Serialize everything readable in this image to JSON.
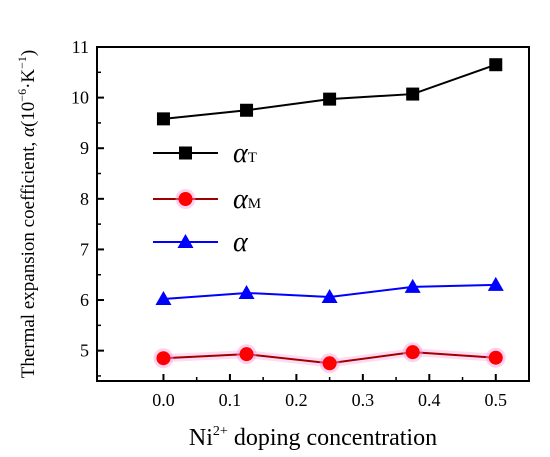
{
  "chart_data": {
    "type": "line",
    "xlabel": {
      "base": "Ni",
      "sup": "2+",
      "rest": " doping concentration"
    },
    "ylabel": {
      "prefix": "Thermal expansion coefficient, ",
      "sym": "α",
      "open": "(10",
      "exp": "−6",
      "mid": "·K",
      "exp2": "−1",
      "close": ")"
    },
    "xlim": [
      -0.1,
      0.55
    ],
    "ylim": [
      4.4,
      11
    ],
    "x_ticks": [
      0.0,
      0.1,
      0.2,
      0.3,
      0.4,
      0.5
    ],
    "x_tick_labels": [
      "0.0",
      "0.1",
      "0.2",
      "0.3",
      "0.4",
      "0.5"
    ],
    "y_ticks": [
      5,
      6,
      7,
      8,
      9,
      10,
      11
    ],
    "y_tick_labels": [
      "5",
      "6",
      "7",
      "8",
      "9",
      "10",
      "11"
    ],
    "x": [
      0.0,
      0.125,
      0.25,
      0.375,
      0.5
    ],
    "series": [
      {
        "name": "αT",
        "sym": "α",
        "sub": "T",
        "color": "#000000",
        "marker": "square",
        "values": [
          9.58,
          9.75,
          9.97,
          10.07,
          10.65
        ]
      },
      {
        "name": "αM",
        "sym": "α",
        "sub": "M",
        "color": "#ff0000",
        "marker": "circle",
        "values": [
          4.85,
          4.93,
          4.75,
          4.97,
          4.86
        ]
      },
      {
        "name": "α",
        "sym": "α",
        "sub": "",
        "color": "#0000ff",
        "marker": "triangle",
        "values": [
          6.02,
          6.14,
          6.06,
          6.26,
          6.3
        ]
      }
    ],
    "series_line_colors": [
      "#000000",
      "#a00000",
      "#0000ff"
    ],
    "legend_position": "left-middle",
    "grid": false
  }
}
